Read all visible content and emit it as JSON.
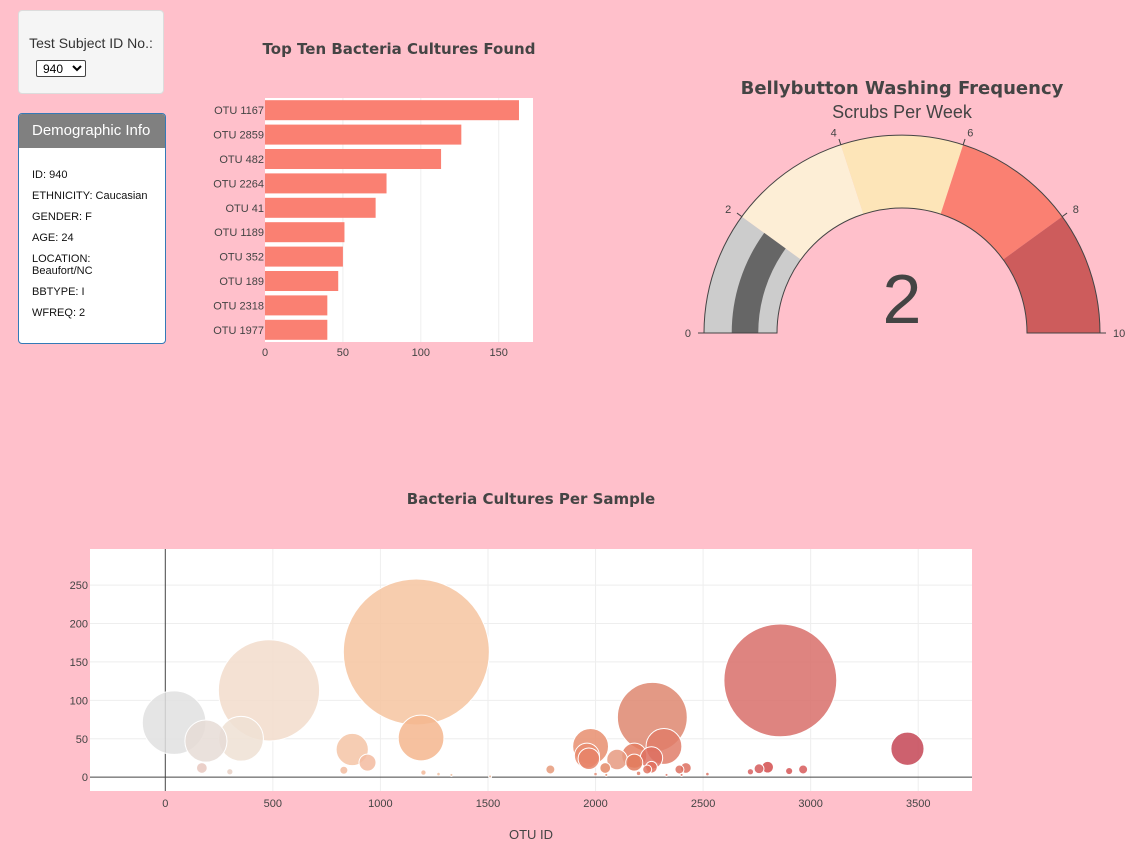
{
  "selector": {
    "label": "Test Subject ID No.:",
    "selected": "940"
  },
  "demographic": {
    "title": "Demographic Info",
    "rows": [
      "ID: 940",
      "ETHNICITY: Caucasian",
      "GENDER: F",
      "AGE: 24",
      "LOCATION: Beaufort/NC",
      "BBTYPE: I",
      "WFREQ: 2"
    ]
  },
  "colors": {
    "page_bg": "#ffc0cb",
    "bar": "#fa8072",
    "needle": "#666666"
  },
  "chart_data": [
    {
      "type": "bar",
      "orientation": "horizontal",
      "title": "Top Ten Bacteria Cultures Found",
      "categories": [
        "OTU 1167",
        "OTU 2859",
        "OTU 482",
        "OTU 2264",
        "OTU 41",
        "OTU 1189",
        "OTU 352",
        "OTU 189",
        "OTU 2318",
        "OTU 1977"
      ],
      "values": [
        163,
        126,
        113,
        78,
        71,
        51,
        50,
        47,
        40,
        40
      ],
      "xlim": [
        0,
        172
      ],
      "xticks": [
        0,
        50,
        100,
        150
      ]
    },
    {
      "type": "gauge",
      "title": "Bellybutton Washing Frequency",
      "subtitle": "Scrubs Per Week",
      "value": 2,
      "range": [
        0,
        10
      ],
      "ticks": [
        0,
        2,
        4,
        6,
        8,
        10
      ],
      "steps": [
        {
          "range": [
            2,
            4
          ],
          "color": "#fdeed6"
        },
        {
          "range": [
            4,
            6
          ],
          "color": "#fde5b8"
        },
        {
          "range": [
            6,
            8
          ],
          "color": "#fa8072"
        },
        {
          "range": [
            8,
            10
          ],
          "color": "#cd5c5c"
        }
      ]
    },
    {
      "type": "scatter",
      "title": "Bacteria Cultures Per Sample",
      "xlabel": "OTU ID",
      "xlim": [
        -350,
        3750
      ],
      "ylim": [
        -18,
        297
      ],
      "xticks": [
        0,
        500,
        1000,
        1500,
        2000,
        2500,
        3000,
        3500
      ],
      "yticks": [
        0,
        50,
        100,
        150,
        200,
        250
      ],
      "points": [
        [
          41,
          71,
          "#e0e0e0"
        ],
        [
          189,
          47,
          "#e6dcd6"
        ],
        [
          352,
          50,
          "#eee0d4"
        ],
        [
          482,
          113,
          "#f2dccb"
        ],
        [
          1167,
          163,
          "#f6c4a0"
        ],
        [
          1189,
          51,
          "#f4b68e"
        ],
        [
          869,
          36,
          "#f5c4a6"
        ],
        [
          940,
          19,
          "#f3bba0"
        ],
        [
          1977,
          40,
          "#e78e6e"
        ],
        [
          1960,
          28,
          "#e98c6e"
        ],
        [
          1969,
          24,
          "#e88468"
        ],
        [
          2100,
          23,
          "#e69a80"
        ],
        [
          2180,
          28,
          "#e47e62"
        ],
        [
          2264,
          78,
          "#de8770"
        ],
        [
          2318,
          40,
          "#e17d68"
        ],
        [
          2260,
          25,
          "#dd7060"
        ],
        [
          2859,
          126,
          "#d86f6a"
        ],
        [
          3450,
          37,
          "#c44555"
        ],
        [
          170,
          12,
          "#e8c8c0"
        ],
        [
          2800,
          13,
          "#d44e4e"
        ],
        [
          2965,
          10,
          "#d75a5a"
        ],
        [
          1790,
          10,
          "#e69a7a"
        ],
        [
          2045,
          12,
          "#e38866"
        ],
        [
          2420,
          12,
          "#dd7060"
        ],
        [
          2180,
          19,
          "#e27a5c"
        ],
        [
          2260,
          13,
          "#e2705e"
        ],
        [
          2760,
          11,
          "#d55a5a"
        ],
        [
          2900,
          8,
          "#d65656"
        ],
        [
          830,
          9,
          "#f2bca0"
        ],
        [
          300,
          7,
          "#e8d0c4"
        ],
        [
          1200,
          6,
          "#f2b89a"
        ],
        [
          2390,
          10,
          "#dd7060"
        ],
        [
          2720,
          7,
          "#d86060"
        ],
        [
          2240,
          10,
          "#e07462"
        ],
        [
          1270,
          4,
          "#f0c0a0"
        ],
        [
          1330,
          3,
          "#f0c0a0"
        ],
        [
          2000,
          4,
          "#e4917a"
        ],
        [
          2520,
          4,
          "#dc7464"
        ],
        [
          2200,
          5,
          "#e0806a"
        ],
        [
          2050,
          3,
          "#e38866"
        ],
        [
          1510,
          1,
          "#eebba0"
        ],
        [
          2330,
          3,
          "#df7766"
        ],
        [
          2400,
          3,
          "#dd7060"
        ]
      ]
    }
  ]
}
